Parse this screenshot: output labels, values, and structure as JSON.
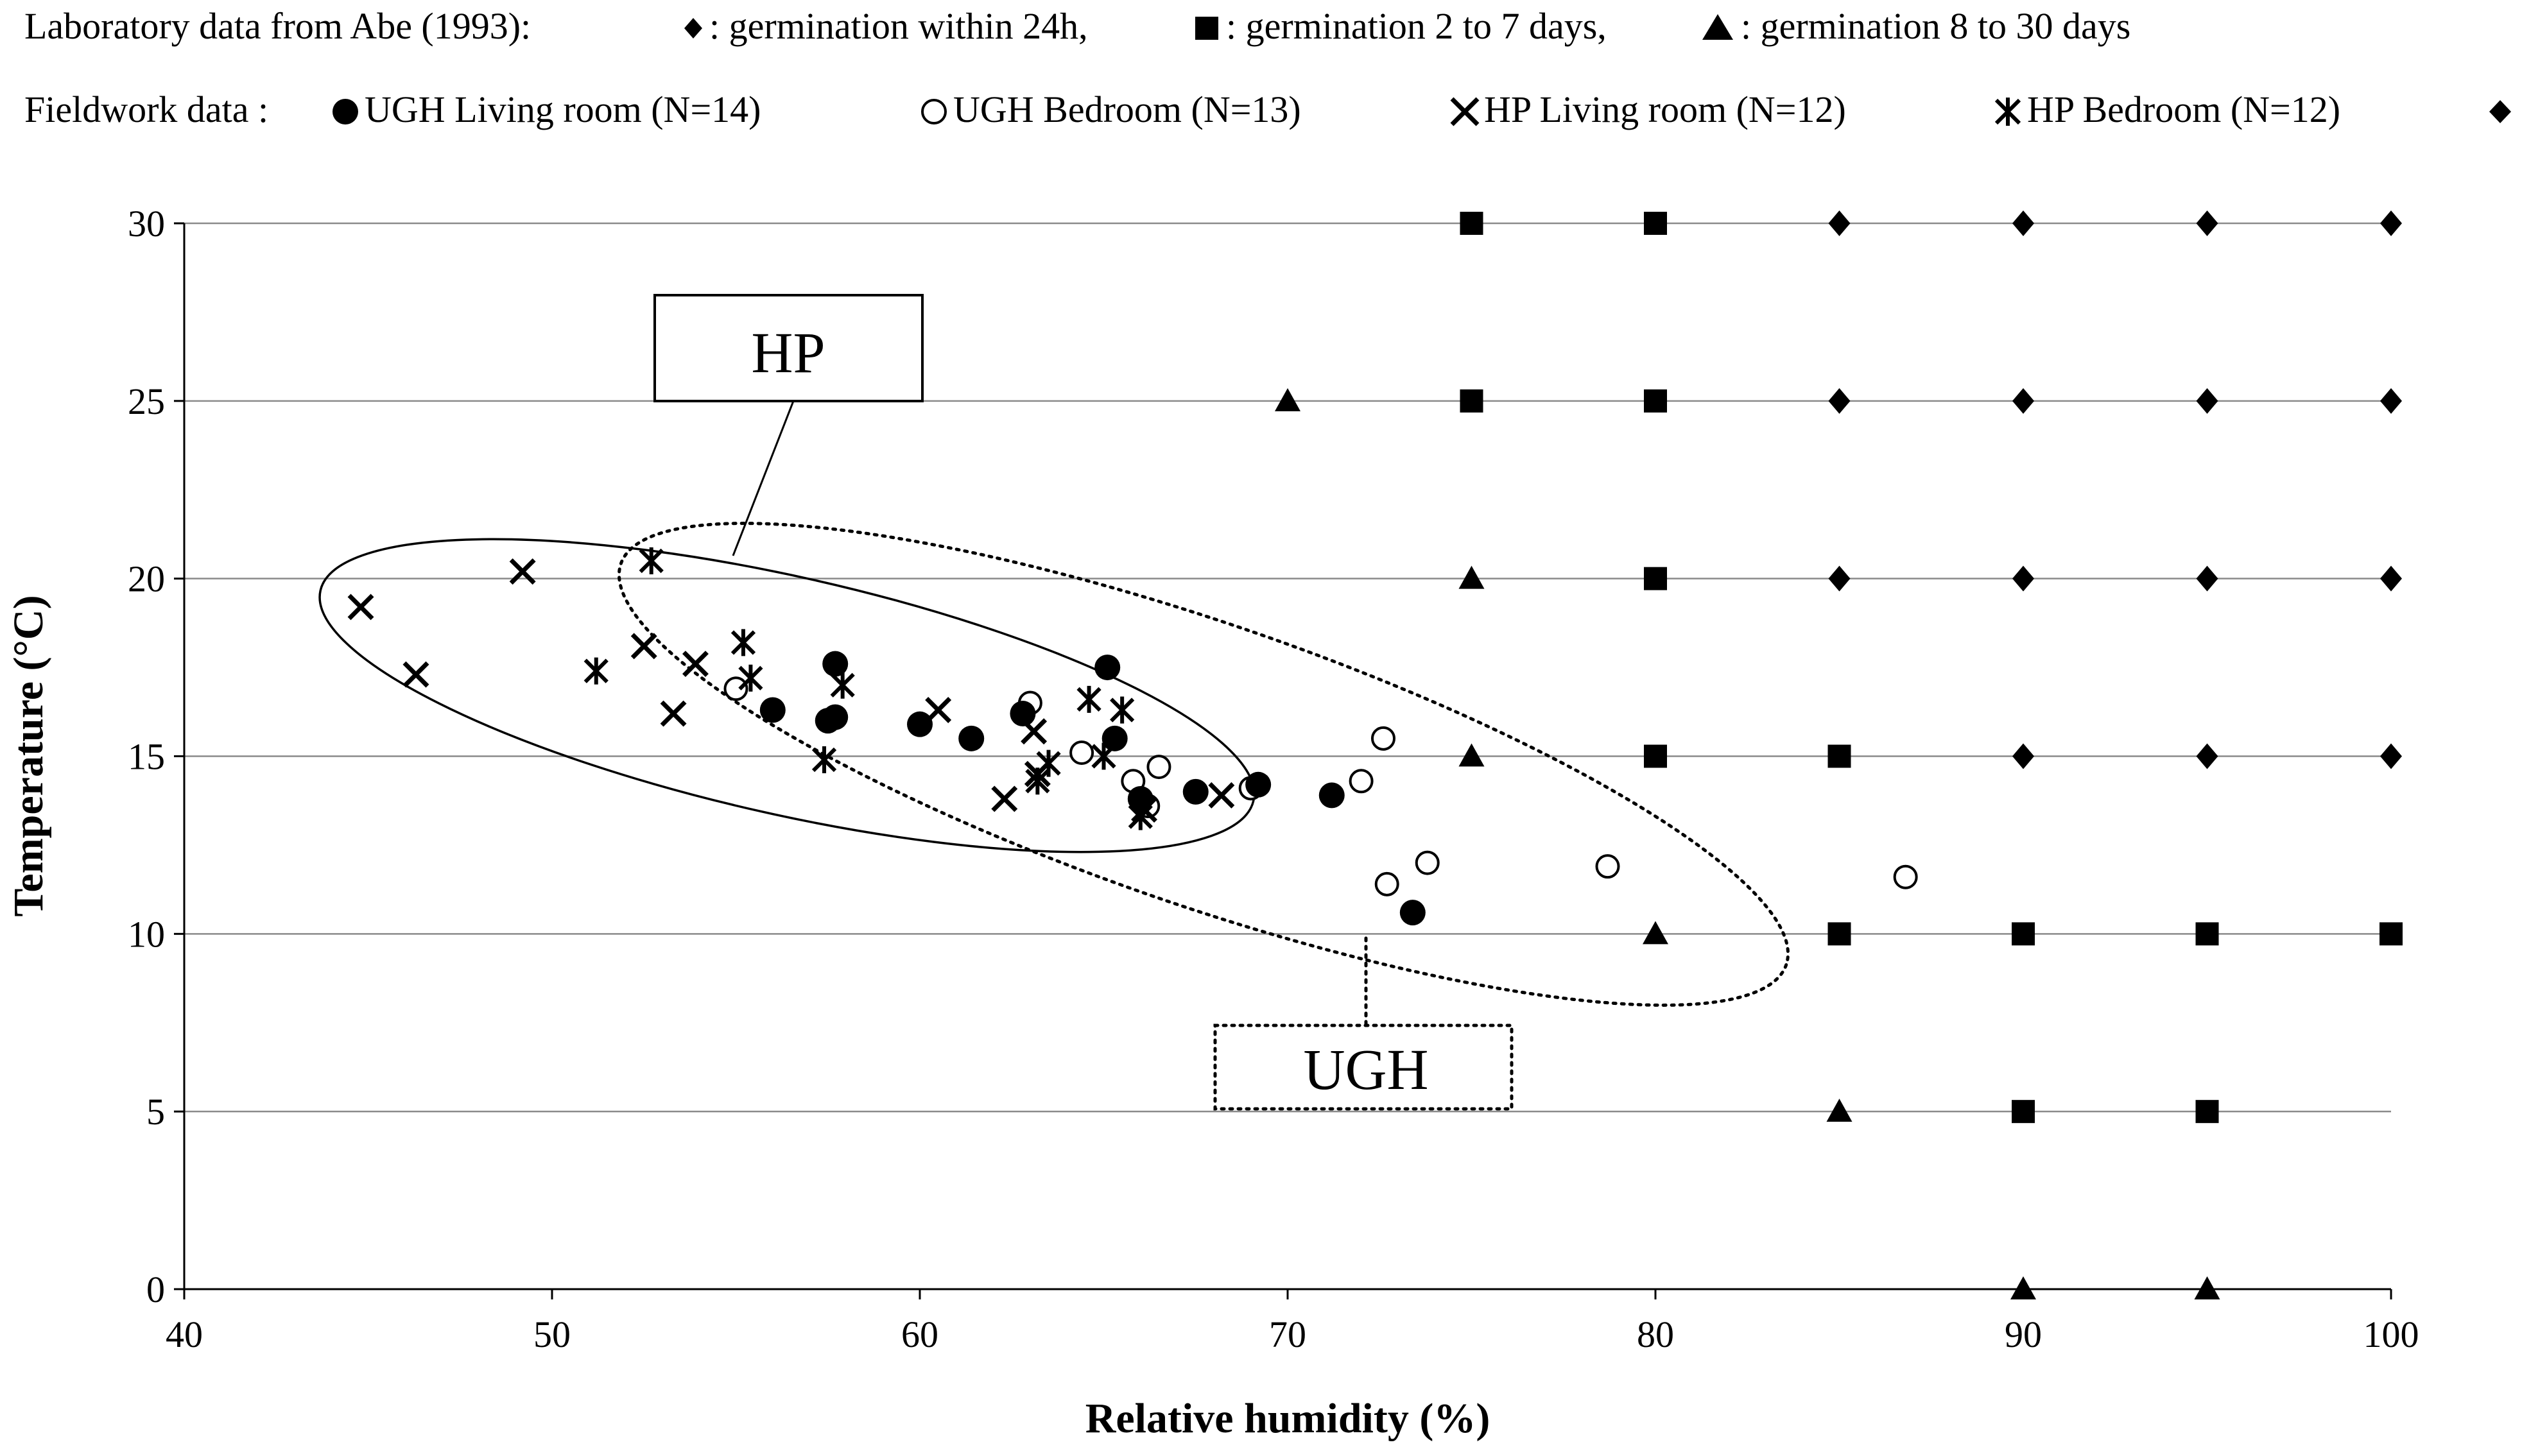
{
  "legend": {
    "lab_prefix": "Laboratory data from Abe (1993):",
    "lab_items": [
      {
        "symbol": "diamond",
        "label": ": germination within 24h,"
      },
      {
        "symbol": "square",
        "label": ": germination 2 to 7 days,"
      },
      {
        "symbol": "triangle",
        "label": ": germination 8 to 30 days"
      }
    ],
    "field_prefix": "Fieldwork data :",
    "field_items": [
      {
        "symbol": "filled-circle",
        "label": "UGH Living room (N=14)"
      },
      {
        "symbol": "open-circle",
        "label": "UGH Bedroom (N=13)"
      },
      {
        "symbol": "x",
        "label": "HP Living room (N=12)"
      },
      {
        "symbol": "asterisk",
        "label": "HP Bedroom (N=12)"
      },
      {
        "symbol": "diamond",
        "label": ""
      }
    ]
  },
  "chart_data": {
    "type": "scatter",
    "xlabel": "Relative humidity (%)",
    "ylabel": "Temperature (°C)",
    "xlim": [
      40,
      100
    ],
    "ylim": [
      0,
      30
    ],
    "x_ticks": [
      40,
      50,
      60,
      70,
      80,
      90,
      100
    ],
    "y_ticks": [
      0,
      5,
      10,
      15,
      20,
      25,
      30
    ],
    "grid": "horizontal",
    "annotations": [
      {
        "label": "HP",
        "box_style": "solid",
        "ellipse_style": "solid"
      },
      {
        "label": "UGH",
        "box_style": "dotted",
        "ellipse_style": "dotted"
      }
    ],
    "series": [
      {
        "name": "germination within 24h",
        "marker": "diamond",
        "points": [
          [
            85,
            30
          ],
          [
            90,
            30
          ],
          [
            95,
            30
          ],
          [
            100,
            30
          ],
          [
            85,
            25
          ],
          [
            90,
            25
          ],
          [
            95,
            25
          ],
          [
            100,
            25
          ],
          [
            85,
            20
          ],
          [
            90,
            20
          ],
          [
            95,
            20
          ],
          [
            100,
            20
          ],
          [
            90,
            15
          ],
          [
            95,
            15
          ],
          [
            100,
            15
          ]
        ]
      },
      {
        "name": "germination 2 to 7 days",
        "marker": "square",
        "points": [
          [
            75,
            30
          ],
          [
            80,
            30
          ],
          [
            75,
            25
          ],
          [
            80,
            25
          ],
          [
            80,
            20
          ],
          [
            80,
            15
          ],
          [
            85,
            15
          ],
          [
            85,
            10
          ],
          [
            90,
            10
          ],
          [
            95,
            10
          ],
          [
            100,
            10
          ],
          [
            90,
            5
          ],
          [
            95,
            5
          ]
        ]
      },
      {
        "name": "germination 8 to 30 days",
        "marker": "triangle",
        "points": [
          [
            70,
            25
          ],
          [
            75,
            20
          ],
          [
            75,
            15
          ],
          [
            80,
            10
          ],
          [
            85,
            5
          ],
          [
            90,
            0
          ],
          [
            95,
            0
          ]
        ]
      },
      {
        "name": "UGH Living room (N=14)",
        "marker": "filled-circle",
        "points": [
          [
            56,
            16.3
          ],
          [
            57.5,
            16
          ],
          [
            57.7,
            16.1
          ],
          [
            57.7,
            17.6
          ],
          [
            60,
            15.9
          ],
          [
            61.4,
            15.5
          ],
          [
            62.8,
            16.2
          ],
          [
            65.1,
            17.5
          ],
          [
            65.3,
            15.5
          ],
          [
            66,
            13.8
          ],
          [
            67.5,
            14
          ],
          [
            69.2,
            14.2
          ],
          [
            71.2,
            13.9
          ],
          [
            73.4,
            10.6
          ]
        ]
      },
      {
        "name": "UGH Bedroom (N=13)",
        "marker": "open-circle",
        "points": [
          [
            55,
            16.9
          ],
          [
            63,
            16.5
          ],
          [
            64.4,
            15.1
          ],
          [
            65.8,
            14.3
          ],
          [
            66.5,
            14.7
          ],
          [
            69,
            14.1
          ],
          [
            72,
            14.3
          ],
          [
            72.6,
            15.5
          ],
          [
            72.7,
            11.4
          ],
          [
            73.8,
            12
          ],
          [
            78.7,
            11.9
          ],
          [
            86.8,
            11.6
          ],
          [
            66.2,
            13.6
          ]
        ]
      },
      {
        "name": "HP Living room (N=12)",
        "marker": "x",
        "points": [
          [
            44.8,
            19.2
          ],
          [
            46.3,
            17.3
          ],
          [
            49.2,
            20.2
          ],
          [
            52.5,
            18.1
          ],
          [
            53.3,
            16.2
          ],
          [
            53.9,
            17.6
          ],
          [
            60.5,
            16.3
          ],
          [
            62.3,
            13.8
          ],
          [
            63.1,
            15.7
          ],
          [
            63.2,
            14.5
          ],
          [
            66.1,
            13.5
          ],
          [
            68.2,
            13.9
          ]
        ]
      },
      {
        "name": "HP Bedroom (N=12)",
        "marker": "asterisk",
        "points": [
          [
            51.2,
            17.4
          ],
          [
            52.7,
            20.5
          ],
          [
            55.2,
            18.2
          ],
          [
            55.4,
            17.2
          ],
          [
            57.4,
            14.9
          ],
          [
            57.9,
            17
          ],
          [
            63.2,
            14.3
          ],
          [
            63.5,
            14.8
          ],
          [
            64.6,
            16.6
          ],
          [
            65,
            15
          ],
          [
            65.5,
            16.3
          ],
          [
            66,
            13.3
          ]
        ]
      }
    ]
  }
}
